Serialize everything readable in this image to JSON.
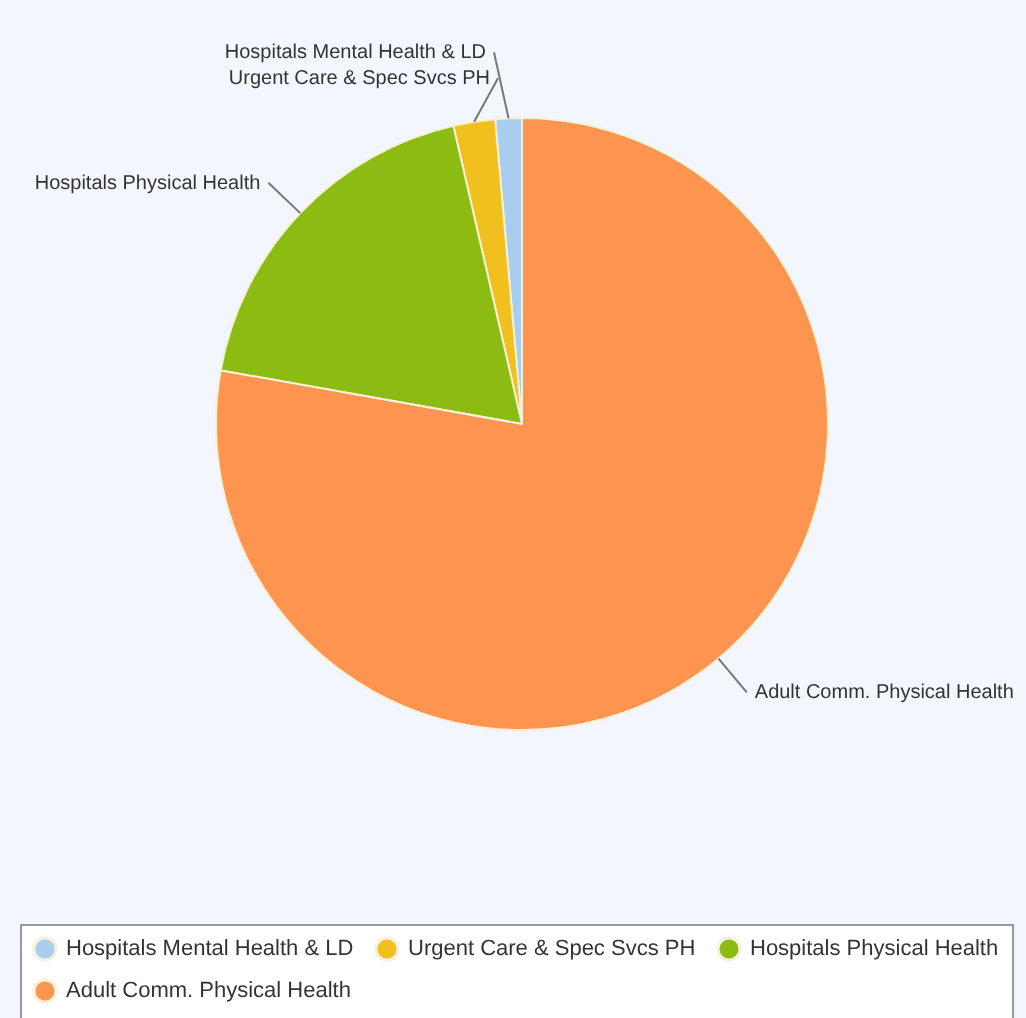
{
  "chart_data": {
    "type": "pie",
    "categories": [
      "Hospitals Mental Health & LD",
      "Urgent Care & Spec Svcs PH",
      "Hospitals Physical Health",
      "Adult Comm. Physical Health"
    ],
    "values": [
      1.4,
      2.2,
      18.6,
      77.8
    ],
    "colors": [
      "#a9cdef",
      "#f2c01e",
      "#8cbb12",
      "#fd9450"
    ],
    "legend": "bottom"
  }
}
